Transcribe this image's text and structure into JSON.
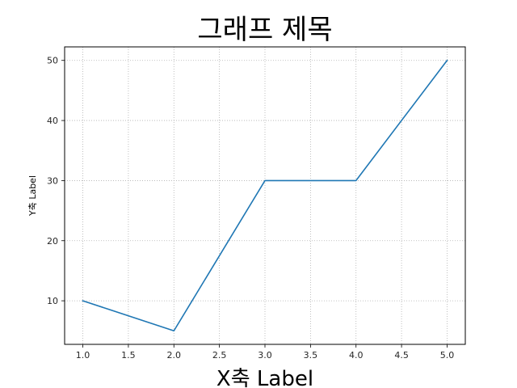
{
  "chart_data": {
    "type": "line",
    "title": "그래프 제목",
    "xlabel": "X축 Label",
    "ylabel": "Y축 Label",
    "x": [
      1.0,
      2.0,
      3.0,
      4.0,
      5.0
    ],
    "series": [
      {
        "values": [
          10,
          5,
          30,
          30,
          50
        ],
        "color": "#1f77b4"
      }
    ],
    "xlim": [
      0.8,
      5.2
    ],
    "ylim": [
      2.75,
      52.25
    ],
    "xticks": [
      1.0,
      1.5,
      2.0,
      2.5,
      3.0,
      3.5,
      4.0,
      4.5,
      5.0
    ],
    "xtick_labels": [
      "1.0",
      "1.5",
      "2.0",
      "2.5",
      "3.0",
      "3.5",
      "4.0",
      "4.5",
      "5.0"
    ],
    "yticks": [
      10,
      20,
      30,
      40,
      50
    ],
    "ytick_labels": [
      "10",
      "20",
      "30",
      "40",
      "50"
    ],
    "grid": true,
    "grid_style": "dotted",
    "legend": false
  }
}
